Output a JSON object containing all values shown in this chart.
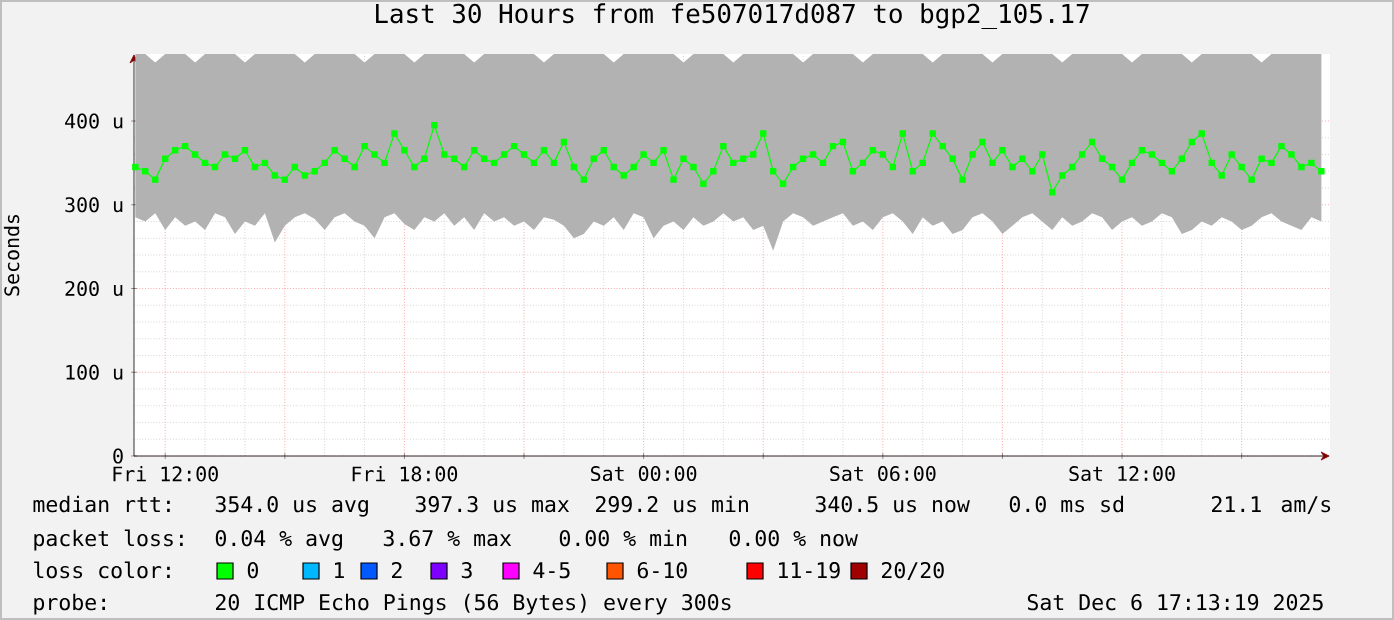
{
  "chart_data": {
    "type": "line",
    "title": "Last 30 Hours from fe507017d087 to bgp2_105.17",
    "ylabel": "Seconds",
    "x": [
      "2025-12-05T11:15",
      "2025-12-05T11:30",
      "2025-12-05T11:45",
      "2025-12-05T12:00",
      "2025-12-05T12:15",
      "2025-12-05T12:30",
      "2025-12-05T12:45",
      "2025-12-05T13:00",
      "2025-12-05T13:15",
      "2025-12-05T13:30",
      "2025-12-05T13:45",
      "2025-12-05T14:00",
      "2025-12-05T14:15",
      "2025-12-05T14:30",
      "2025-12-05T14:45",
      "2025-12-05T15:00",
      "2025-12-05T15:15",
      "2025-12-05T15:30",
      "2025-12-05T15:45",
      "2025-12-05T16:00",
      "2025-12-05T16:15",
      "2025-12-05T16:30",
      "2025-12-05T16:45",
      "2025-12-05T17:00",
      "2025-12-05T17:15",
      "2025-12-05T17:30",
      "2025-12-05T17:45",
      "2025-12-05T18:00",
      "2025-12-05T18:15",
      "2025-12-05T18:30",
      "2025-12-05T18:45",
      "2025-12-05T19:00",
      "2025-12-05T19:15",
      "2025-12-05T19:30",
      "2025-12-05T19:45",
      "2025-12-05T20:00",
      "2025-12-05T20:15",
      "2025-12-05T20:30",
      "2025-12-05T20:45",
      "2025-12-05T21:00",
      "2025-12-05T21:15",
      "2025-12-05T21:30",
      "2025-12-05T21:45",
      "2025-12-05T22:00",
      "2025-12-05T22:15",
      "2025-12-05T22:30",
      "2025-12-05T22:45",
      "2025-12-05T23:00",
      "2025-12-05T23:15",
      "2025-12-05T23:30",
      "2025-12-05T23:45",
      "2025-12-06T00:00",
      "2025-12-06T00:15",
      "2025-12-06T00:30",
      "2025-12-06T00:45",
      "2025-12-06T01:00",
      "2025-12-06T01:15",
      "2025-12-06T01:30",
      "2025-12-06T01:45",
      "2025-12-06T02:00",
      "2025-12-06T02:15",
      "2025-12-06T02:30",
      "2025-12-06T02:45",
      "2025-12-06T03:00",
      "2025-12-06T03:15",
      "2025-12-06T03:30",
      "2025-12-06T03:45",
      "2025-12-06T04:00",
      "2025-12-06T04:15",
      "2025-12-06T04:30",
      "2025-12-06T04:45",
      "2025-12-06T05:00",
      "2025-12-06T05:15",
      "2025-12-06T05:30",
      "2025-12-06T05:45",
      "2025-12-06T06:00",
      "2025-12-06T06:15",
      "2025-12-06T06:30",
      "2025-12-06T06:45",
      "2025-12-06T07:00",
      "2025-12-06T07:15",
      "2025-12-06T07:30",
      "2025-12-06T07:45",
      "2025-12-06T08:00",
      "2025-12-06T08:15",
      "2025-12-06T08:30",
      "2025-12-06T08:45",
      "2025-12-06T09:00",
      "2025-12-06T09:15",
      "2025-12-06T09:30",
      "2025-12-06T09:45",
      "2025-12-06T10:00",
      "2025-12-06T10:15",
      "2025-12-06T10:30",
      "2025-12-06T10:45",
      "2025-12-06T11:00",
      "2025-12-06T11:15",
      "2025-12-06T11:30",
      "2025-12-06T11:45",
      "2025-12-06T12:00",
      "2025-12-06T12:15",
      "2025-12-06T12:30",
      "2025-12-06T12:45",
      "2025-12-06T13:00",
      "2025-12-06T13:15",
      "2025-12-06T13:30",
      "2025-12-06T13:45",
      "2025-12-06T14:00",
      "2025-12-06T14:15",
      "2025-12-06T14:30",
      "2025-12-06T14:45",
      "2025-12-06T15:00",
      "2025-12-06T15:15",
      "2025-12-06T15:30",
      "2025-12-06T15:45",
      "2025-12-06T16:00",
      "2025-12-06T16:15",
      "2025-12-06T16:30",
      "2025-12-06T16:45",
      "2025-12-06T17:00"
    ],
    "series": [
      {
        "color": "#00ff00",
        "values": [
          345,
          340,
          330,
          355,
          365,
          370,
          360,
          350,
          345,
          360,
          355,
          365,
          345,
          350,
          335,
          330,
          345,
          335,
          340,
          350,
          365,
          355,
          345,
          370,
          360,
          350,
          385,
          365,
          345,
          355,
          395,
          360,
          355,
          345,
          365,
          355,
          350,
          360,
          370,
          360,
          350,
          365,
          350,
          375,
          345,
          330,
          355,
          365,
          345,
          335,
          345,
          360,
          350,
          365,
          330,
          355,
          345,
          325,
          340,
          370,
          350,
          355,
          360,
          385,
          340,
          325,
          345,
          355,
          360,
          350,
          370,
          375,
          340,
          350,
          365,
          360,
          345,
          385,
          340,
          350,
          385,
          370,
          355,
          330,
          360,
          375,
          350,
          365,
          345,
          355,
          340,
          360,
          315,
          335,
          345,
          360,
          375,
          355,
          345,
          330,
          350,
          365,
          360,
          350,
          340,
          355,
          375,
          385,
          350,
          335,
          360,
          345,
          330,
          355,
          350,
          370,
          360,
          345,
          350,
          340
        ],
        "lower": [
          285,
          280,
          290,
          270,
          285,
          275,
          280,
          270,
          290,
          285,
          265,
          280,
          275,
          290,
          255,
          275,
          285,
          290,
          283,
          270,
          285,
          290,
          280,
          275,
          260,
          285,
          290,
          277,
          270,
          285,
          280,
          290,
          275,
          285,
          270,
          290,
          280,
          285,
          275,
          280,
          270,
          285,
          282,
          275,
          260,
          265,
          280,
          275,
          285,
          270,
          290,
          285,
          260,
          275,
          280,
          270,
          285,
          275,
          280,
          290,
          280,
          285,
          270,
          275,
          245,
          280,
          290,
          285,
          275,
          280,
          285,
          290,
          275,
          280,
          270,
          285,
          290,
          280,
          265,
          285,
          275,
          280,
          265,
          270,
          285,
          290,
          280,
          265,
          275,
          285,
          290,
          280,
          270,
          285,
          275,
          280,
          290,
          285,
          270,
          280,
          285,
          275,
          280,
          290,
          285,
          265,
          270,
          280,
          275,
          285,
          280,
          270,
          275,
          285,
          290,
          280,
          275,
          270,
          285,
          280
        ],
        "upper": [
          480,
          480,
          470,
          480,
          480,
          480,
          470,
          480,
          480,
          480,
          480,
          470,
          480,
          480,
          480,
          480,
          480,
          470,
          480,
          480,
          480,
          480,
          480,
          470,
          480,
          480,
          480,
          480,
          470,
          480,
          480,
          480,
          480,
          480,
          470,
          480,
          480,
          480,
          480,
          480,
          480,
          470,
          480,
          480,
          480,
          480,
          480,
          480,
          470,
          480,
          480,
          480,
          480,
          480,
          480,
          470,
          480,
          480,
          480,
          480,
          470,
          480,
          480,
          480,
          480,
          480,
          480,
          470,
          480,
          480,
          480,
          480,
          480,
          470,
          480,
          480,
          480,
          480,
          480,
          480,
          470,
          480,
          480,
          480,
          480,
          480,
          470,
          480,
          480,
          480,
          480,
          480,
          480,
          470,
          480,
          480,
          480,
          480,
          480,
          480,
          470,
          480,
          480,
          480,
          480,
          480,
          470,
          480,
          480,
          480,
          480,
          480,
          480,
          470,
          480,
          480,
          480,
          480,
          480,
          480
        ]
      }
    ],
    "xlim": [
      "2025-12-05T11:13",
      "2025-12-06T17:13"
    ],
    "ylim": [
      0,
      480
    ],
    "xticks": [
      {
        "value": "2025-12-05T12:00",
        "label": "Fri 12:00"
      },
      {
        "value": "2025-12-05T15:00",
        "label": null
      },
      {
        "value": "2025-12-05T18:00",
        "label": "Fri 18:00"
      },
      {
        "value": "2025-12-05T21:00",
        "label": null
      },
      {
        "value": "2025-12-06T00:00",
        "label": "Sat 00:00"
      },
      {
        "value": "2025-12-06T03:00",
        "label": null
      },
      {
        "value": "2025-12-06T06:00",
        "label": "Sat 06:00"
      },
      {
        "value": "2025-12-06T09:00",
        "label": null
      },
      {
        "value": "2025-12-06T12:00",
        "label": "Sat 12:00"
      },
      {
        "value": "2025-12-06T15:00",
        "label": null
      }
    ],
    "yticks": [
      0,
      {
        "value": 100,
        "label": "100 u"
      },
      {
        "value": 200,
        "label": "200 u"
      },
      {
        "value": 300,
        "label": "300 u"
      },
      {
        "value": 400,
        "label": "400 u"
      }
    ],
    "grid": true,
    "legend": false,
    "marker": "square",
    "line_style": "solid",
    "annotations": [
      "median rtt:",
      "354.0 us avg",
      "397.3 us max",
      "299.2 us min",
      "340.5 us now",
      "0.0 ms sd",
      "21.1",
      "am/s",
      "packet loss:",
      "0.04 % avg",
      "3.67 % max",
      "0.00 % min",
      "0.00 % now",
      "loss color:",
      "0",
      "1",
      "2",
      "3",
      "4-5",
      "6-10",
      "11-19",
      "20/20",
      "probe:",
      "20 ICMP Echo Pings (56 Bytes) every 300s",
      "Sat Dec  6 17:13:19 2025"
    ]
  }
}
